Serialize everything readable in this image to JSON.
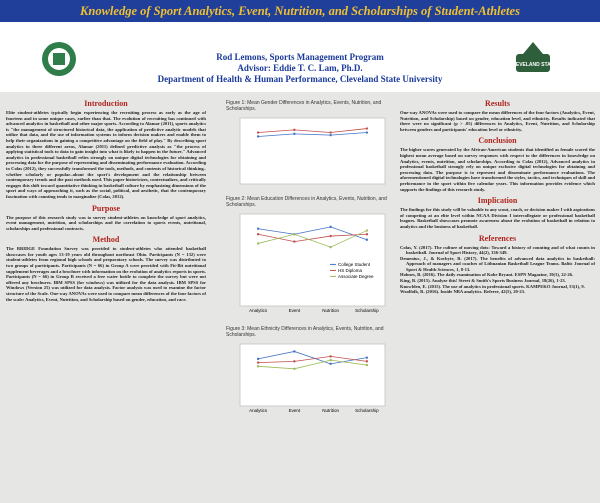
{
  "header": {
    "title": "Knowledge of Sport Analytics, Event, Nutrition, and Scholarships of Student-Athletes",
    "author": "Rod Lemons, Sports Management Program",
    "advisor": "Advisor: Eddie T. C. Lam, Ph.D.",
    "department": "Department of Health & Human Performance, Cleveland State University",
    "logo_text": "CLEVELAND STATE"
  },
  "sections": [
    {
      "heading": "Introduction",
      "text": "Elite student-athletes typically begin experiencing the recruiting process as early as the age of fourteen and in some unique cases, earlier than that. The evolution of recruiting has continued with advanced analytics in basketball and other major sports. According to Alamar (2011), sports analytics is \"the management of structured historical data, the application of predictive analytic models that utilize that data, and the use of information systems to inform decision makers and enable them to help their organizations in gaining a competitive advantage on the field of play.\" By describing sport analytics in three different areas, Alamar (2011) defined predictive analysis as \"the process of applying statistical tools to data to gain insight into what is likely to happen in the future.\" Advanced analytics in professional basketball relies strongly on unique digital technologies for obtaining and processing data for the purpose of representing and disseminating performance evaluation. According to Colas (2012), they successfully transformed the tools, methods, and contents of historical thinking–whether scholarly or popular–about the sport's development and the relationship between contemporary trends and the past methods used. This paper historicizes, contextualizes, and critically engages this shift toward quantitative thinking in basketball culture by emphasizing dimensions of the sport and ways of approaching it, such as the social, political, and aesthetic, that the contemporary fascination with counting tends to marginalize (Colas, 2012)."
    },
    {
      "heading": "Purpose",
      "text": "The purpose of this research study was to survey student-athletes on knowledge of sport analytics, event management, nutrition, and scholarships and the correlation to sports events, nutritional, scholarships and professional contracts."
    },
    {
      "heading": "Method",
      "text": "The BRIDGE Foundation Survey was provided to student-athletes who attended basketball showcases for youth ages 13-19 years old throughout northeast Ohio. Participants (N = 132) were student-athletes from regional high schools and preparatory schools. The survey was distributed to two groups of participants. Participants (N = 66) in Group A were provided with Fit-Bit nutritional supplement beverages and a brochure with information on the evolution of analytics reports in sports. Participants (N = 66) in Group B received a free water bottle to complete the survey but were not offered any brochures. IBM SPSS (for windows) was utilized for the data analysis. IBM SPSS for Windows (Version 25) was utilized for data analysis. Factor analysis was used to examine the factor structure of the Scale. One-way ANOVAs were used to compare mean differences of the four factors of the scale: Analytics, Event, Nutrition, and Scholarship based on gender, education, and race."
    },
    {
      "heading": "Results",
      "text": "One-way ANOVAs were used to compare the mean differences of the four factors (Analytics, Event, Nutrition, and Scholarship) based on gender, education level, and ethnicity. Results indicated that there were no significant (p > .05) differences in Analytics, Event, Nutrition, and Scholarship between genders and participants' education level or ethnicity."
    },
    {
      "heading": "Conclusion",
      "text": "The higher scores generated by the African-American students that identified as female scored the highest mean average based on survey responses with respect to the differences in knowledge on Analytics, events, nutrition, and scholarships. According to Colas (2012), Advanced analytics in professional basketball strongly rely on unique exclusive digital technologies for obtaining and processing data. The purpose is to represent and disseminate performance evaluations. The aforementioned digital technologies have transformed the styles, tactics, and techniques of skill and performance in the sport within five calendar years. This information provides evidence which supports the findings of this research study."
    },
    {
      "heading": "Implication",
      "text": "The findings for this study will be valuable to any scout, coach, or decision maker I with aspirations of competing at an elite level within NCAA Division I intercollegiate or professional basketball leagues. Basketball showcases promote awareness about the evolution of basketball in relation to analytics and the business of basketball."
    }
  ],
  "references": {
    "heading": "References",
    "items": [
      "Colas, Y. (2017). The culture of moving dots: Toward a history of counting and of what counts in basketball. Journal of Sport History, 44(2), 336-349.",
      "Demeniuc, J., & Kovbyte, R. (2017). The benefits of advanced data analytics in basketball: Approach of managers and coaches of Lithuanian Basketball League Teams. Baltic Journal of Sport & Health Sciences, 1, 8-13.",
      "Holmes, B. (2016). The daily examination of Kobe Bryant. ESPN Magazine, 19(3), 22-26.",
      "King, B. (2015). Analyze this! Street & Smith's Sports Business Journal, 18(26), 1-23.",
      "Knowlden, E. (2015). The use of analytics in professional sports. KAMPEKO Journal, 53(1), 9.",
      "Woolfolk, R. (2016). Inside NBA analytics. Referee, 42(5), 20-23."
    ]
  },
  "figures": [
    {
      "caption": "Figure 1: Mean Gender Differences in Analytics, Events, Nutrition, and Scholarships.",
      "ylim": [
        0,
        5
      ],
      "series": [
        {
          "color": "#4472c4",
          "values": [
            3.6,
            3.8,
            3.7,
            3.9
          ]
        },
        {
          "color": "#c0504d",
          "values": [
            3.9,
            4.1,
            3.9,
            4.2
          ]
        }
      ]
    },
    {
      "caption": "Figure 2: Mean Education Differences in Analytics, Events, Nutrition, and Scholarships.",
      "categories": [
        "Analytics",
        "Event",
        "Nutrition",
        "Scholarship"
      ],
      "ylim": [
        0,
        5
      ],
      "series": [
        {
          "name": "College Student",
          "color": "#4472c4",
          "values": [
            4.2,
            3.9,
            4.3,
            3.6
          ]
        },
        {
          "name": "HS Diploma",
          "color": "#c0504d",
          "values": [
            3.9,
            3.5,
            3.8,
            3.9
          ]
        },
        {
          "name": "Associate Degree",
          "color": "#9bbb59",
          "values": [
            3.4,
            3.9,
            3.2,
            4.1
          ]
        }
      ]
    },
    {
      "caption": "Figure 3: Mean Ethnicity Differences in Analytics, Events, Nutrition, and Scholarships.",
      "categories": [
        "Analytics",
        "Event",
        "Nutrition",
        "Scholarship"
      ],
      "ylim": [
        0,
        5
      ],
      "series": [
        {
          "color": "#4472c4",
          "values": [
            3.8,
            4.4,
            3.4,
            3.9
          ]
        },
        {
          "color": "#c0504d",
          "values": [
            3.5,
            3.6,
            4.0,
            3.6
          ]
        },
        {
          "color": "#9bbb59",
          "values": [
            3.2,
            3.0,
            3.7,
            3.3
          ]
        }
      ]
    }
  ]
}
